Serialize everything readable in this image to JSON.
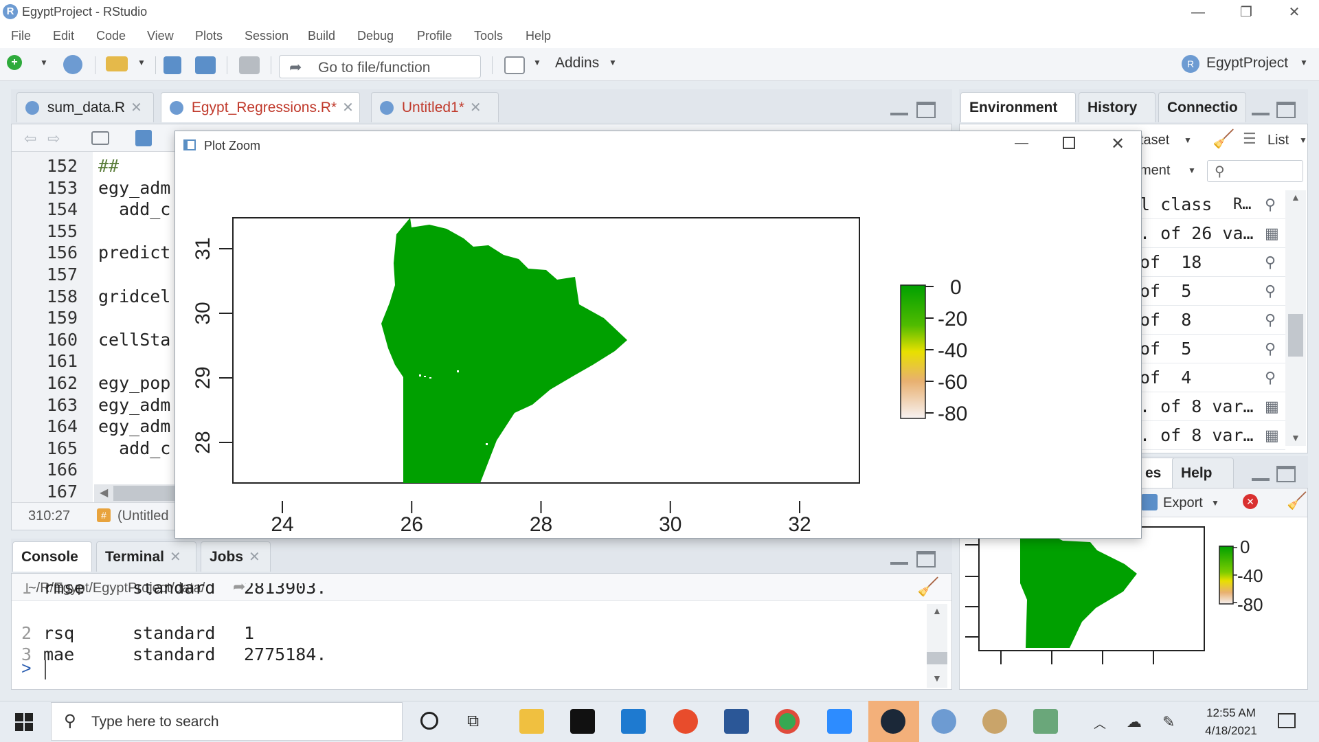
{
  "window": {
    "title": "EgyptProject - RStudio",
    "app_icon": "rstudio-logo",
    "controls": [
      "minimize-icon",
      "restore-icon",
      "close-icon"
    ]
  },
  "menu": [
    "File",
    "Edit",
    "Code",
    "View",
    "Plots",
    "Session",
    "Build",
    "Debug",
    "Profile",
    "Tools",
    "Help"
  ],
  "toolbar": {
    "goto_placeholder": "Go to file/function",
    "addins_label": "Addins",
    "project_label": "EgyptProject"
  },
  "editor": {
    "tabs": [
      {
        "label": "sum_data.R",
        "modified": false
      },
      {
        "label": "Egypt_Regressions.R*",
        "modified": true
      },
      {
        "label": "Untitled1*",
        "modified": true
      }
    ],
    "lines": [
      {
        "num": "152",
        "code": "##"
      },
      {
        "num": "153",
        "code": "egy_adm"
      },
      {
        "num": "154",
        "code": "  add_c"
      },
      {
        "num": "155",
        "code": ""
      },
      {
        "num": "156",
        "code": "predict"
      },
      {
        "num": "157",
        "code": ""
      },
      {
        "num": "158",
        "code": "gridcel"
      },
      {
        "num": "159",
        "code": ""
      },
      {
        "num": "160",
        "code": "cellSta"
      },
      {
        "num": "161",
        "code": ""
      },
      {
        "num": "162",
        "code": "egy_pop"
      },
      {
        "num": "163",
        "code": "egy_adm"
      },
      {
        "num": "164",
        "code": "egy_adm"
      },
      {
        "num": "165",
        "code": "  add_c"
      },
      {
        "num": "166",
        "code": ""
      },
      {
        "num": "167",
        "code": ""
      }
    ],
    "status_position": "310:27",
    "status_scope": "(Untitled"
  },
  "environment": {
    "tabs": [
      "Environment",
      "History",
      "Connectio"
    ],
    "dataset_label": "taset",
    "list_label": "List",
    "filter_label": "ment",
    "rows": [
      {
        "text": "l class",
        "extra": "R…"
      },
      {
        "text": ". of 26 va…",
        "extra": ""
      },
      {
        "text": "of  18",
        "extra": ""
      },
      {
        "text": "of  5",
        "extra": ""
      },
      {
        "text": "of  8",
        "extra": ""
      },
      {
        "text": "of  5",
        "extra": ""
      },
      {
        "text": "of  4",
        "extra": ""
      },
      {
        "text": ". of 8 var…",
        "extra": ""
      },
      {
        "text": ". of 8 var…",
        "extra": ""
      }
    ]
  },
  "plot_zoom": {
    "title": "Plot Zoom",
    "x_ticks": [
      "24",
      "26",
      "28",
      "30",
      "32"
    ],
    "y_ticks": [
      "31",
      "30",
      "29",
      "28"
    ],
    "legend_labels": [
      "0",
      "-20",
      "-40",
      "-60",
      "-80"
    ],
    "fill_color": "#00a000"
  },
  "chart_data": {
    "type": "heatmap",
    "x_ticks": [
      24,
      26,
      28,
      30,
      32
    ],
    "y_ticks": [
      28,
      29,
      30,
      31
    ],
    "legend_values": [
      0,
      -20,
      -40,
      -60,
      -80
    ],
    "xlim": [
      24,
      32
    ],
    "ylim": [
      28,
      31.5
    ],
    "colors": {
      "high": "#00a000",
      "mid": "#e8e000",
      "low": "#f5f0f0"
    }
  },
  "console": {
    "tabs": [
      "Console",
      "Terminal",
      "Jobs"
    ],
    "path": "~/R/Egypt/EgyptProject/data/",
    "rows": [
      {
        "idx": "1",
        "metric": "rmse",
        "estimator": "standard",
        "estimate": "2813903."
      },
      {
        "idx": "2",
        "metric": "rsq",
        "estimator": "standard",
        "estimate": "1"
      },
      {
        "idx": "3",
        "metric": "mae",
        "estimator": "standard",
        "estimate": "2775184."
      }
    ],
    "prompt": ">"
  },
  "plots_pane": {
    "tabs": [
      "es",
      "Help"
    ],
    "export_label": "Export",
    "legend_labels": [
      "0",
      "-40",
      "-80"
    ]
  },
  "taskbar": {
    "search_placeholder": "Type here to search",
    "time": "12:55 AM",
    "date": "4/18/2021"
  }
}
